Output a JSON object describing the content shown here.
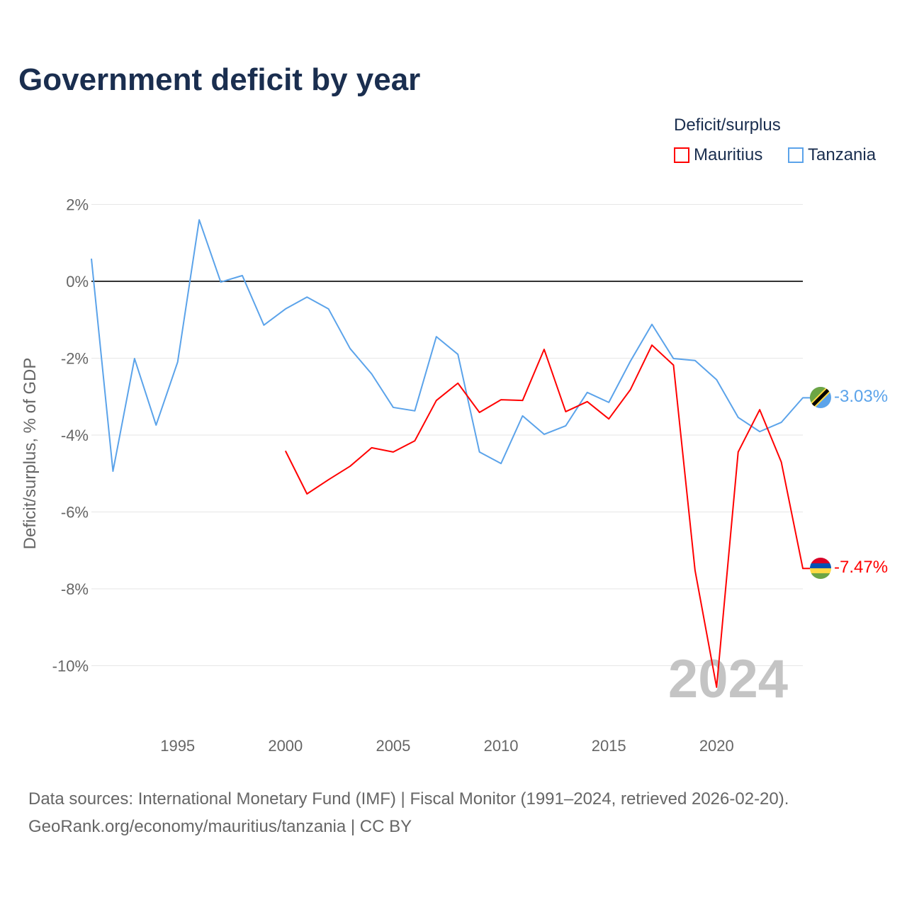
{
  "chart_data": {
    "type": "line",
    "title": "Government deficit by year",
    "ylabel": "Deficit/surplus, % of GDP",
    "xlabel": "",
    "xlim": [
      1991,
      2024
    ],
    "ylim": [
      -11.2,
      2.4
    ],
    "yticks": [
      2,
      0,
      -2,
      -4,
      -6,
      -8,
      -10
    ],
    "ytick_labels": [
      "2%",
      "0%",
      "-2%",
      "-4%",
      "-6%",
      "-8%",
      "-10%"
    ],
    "xticks": [
      1995,
      2000,
      2005,
      2010,
      2015,
      2020
    ],
    "xtick_labels": [
      "1995",
      "2000",
      "2005",
      "2010",
      "2015",
      "2020"
    ],
    "grid": true,
    "legend_title": "Deficit/surplus",
    "legend_position": "top-right",
    "watermark_year": "2024",
    "series": [
      {
        "name": "Mauritius",
        "color": "#ff0000",
        "end_label": "-7.47%",
        "x": [
          2000,
          2001,
          2002,
          2003,
          2004,
          2005,
          2006,
          2007,
          2008,
          2009,
          2010,
          2011,
          2012,
          2013,
          2014,
          2015,
          2016,
          2017,
          2018,
          2019,
          2020,
          2021,
          2022,
          2023,
          2024
        ],
        "values": [
          -4.41,
          -5.53,
          -5.16,
          -4.81,
          -4.33,
          -4.44,
          -4.15,
          -3.1,
          -2.65,
          -3.41,
          -3.08,
          -3.1,
          -1.77,
          -3.39,
          -3.13,
          -3.58,
          -2.82,
          -1.66,
          -2.18,
          -7.52,
          -10.56,
          -4.44,
          -3.34,
          -4.7,
          -7.47
        ]
      },
      {
        "name": "Tanzania",
        "color": "#5ba3ea",
        "end_label": "-3.03%",
        "x": [
          1991,
          1992,
          1993,
          1994,
          1995,
          1996,
          1997,
          1998,
          1999,
          2000,
          2001,
          2002,
          2003,
          2004,
          2005,
          2006,
          2007,
          2008,
          2009,
          2010,
          2011,
          2012,
          2013,
          2014,
          2015,
          2016,
          2017,
          2018,
          2019,
          2020,
          2021,
          2022,
          2023,
          2024
        ],
        "values": [
          0.59,
          -4.94,
          -2.01,
          -3.74,
          -2.1,
          1.6,
          -0.02,
          0.15,
          -1.14,
          -0.72,
          -0.41,
          -0.72,
          -1.75,
          -2.41,
          -3.28,
          -3.37,
          -1.44,
          -1.9,
          -4.44,
          -4.74,
          -3.5,
          -3.98,
          -3.76,
          -2.89,
          -3.15,
          -2.08,
          -1.12,
          -2.01,
          -2.06,
          -2.56,
          -3.54,
          -3.91,
          -3.67,
          -3.03
        ]
      }
    ]
  },
  "source_line1": "Data sources: International Monetary Fund (IMF) | Fiscal Monitor (1991–2024, retrieved 2026-02-20).",
  "source_line2": "GeoRank.org/economy/mauritius/tanzania | CC BY"
}
